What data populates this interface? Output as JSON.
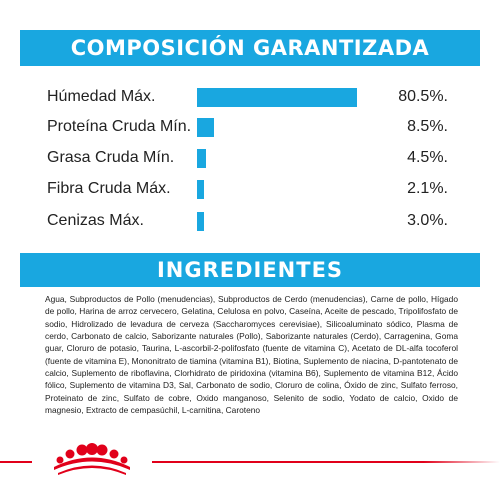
{
  "composition": {
    "title": "COMPOSICIÓN GARANTIZADA",
    "rows": [
      {
        "label": "Húmedad Máx.",
        "value": "80.5%.",
        "amount": 80.5
      },
      {
        "label": "Proteína Cruda Mín.",
        "value": "8.5%.",
        "amount": 8.5
      },
      {
        "label": "Grasa Cruda Mín.",
        "value": "4.5%.",
        "amount": 4.5
      },
      {
        "label": "Fibra Cruda Máx.",
        "value": "2.1%.",
        "amount": 2.1
      },
      {
        "label": "Cenizas Máx.",
        "value": "3.0%.",
        "amount": 3.0
      }
    ],
    "bar_color": "#19a7e0"
  },
  "ingredients": {
    "title": "INGREDIENTES",
    "text": "Agua, Subproductos de Pollo (menudencias), Subproductos de Cerdo (menudencias), Carne de pollo, Hígado de pollo, Harina de arroz cervecero, Gelatina, Celulosa en polvo, Caseína, Aceite de pescado, Tripolifosfato de sodio, Hidrolizado de levadura de cerveza (Saccharomyces cerevisiae), Silicoaluminato sódico, Plasma de cerdo, Carbonato de calcio, Saborizante naturales (Pollo), Saborizante naturales (Cerdo), Carragenina, Goma guar, Cloruro de potasio, Taurina, L-ascorbil-2-polifosfato (fuente de vitamina C), Acetato de DL-alfa tocoferol (fuente de vitamina E), Mononitrato de tiamina (vitamina B1), Biotina, Suplemento de niacina, D-pantotenato de calcio, Suplemento de riboflavina, Clorhidrato de piridoxina (vitamina B6), Suplemento de vitamina B12, Ácido fólico, Suplemento de vitamina D3, Sal, Carbonato de sodio, Cloruro de colina, Óxido de zinc, Sulfato ferroso, Proteinato de zinc, Sulfato de cobre, Oxido manganoso, Selenito de sodio, Yodato de calcio, Oxido de magnesio, Extracto de cempasúchil, L-carnitina, Caroteno"
  },
  "brand": {
    "logo_icon": "royal-canin-crown-icon",
    "accent": "#e1001a",
    "primary": "#19a7e0"
  }
}
